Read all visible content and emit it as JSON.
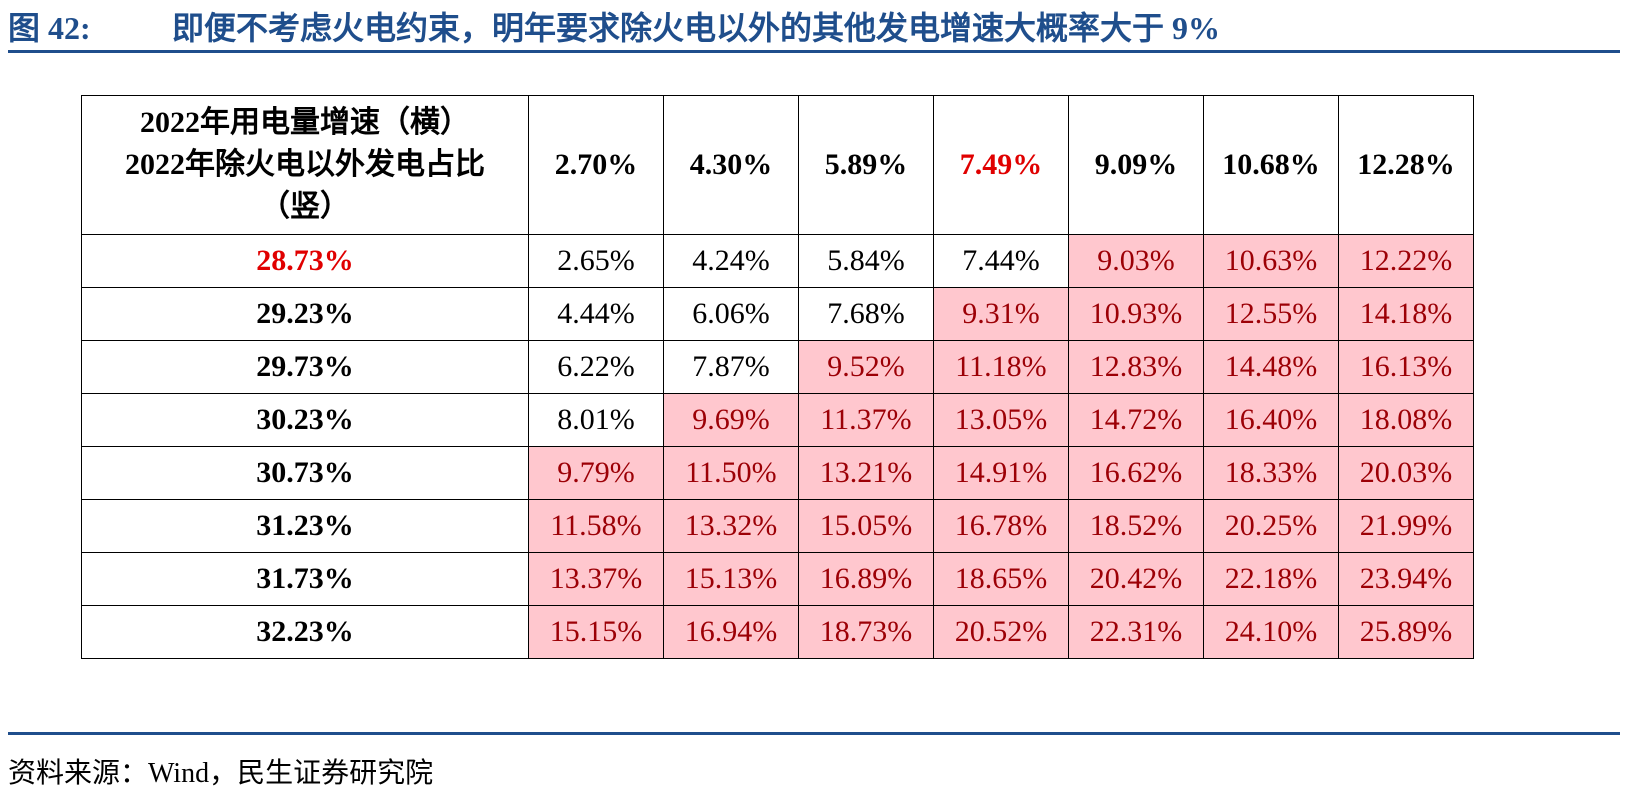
{
  "header": {
    "label": "图 42:",
    "title": "即便不考虑火电约束，明年要求除火电以外的其他发电增速大概率大于 9%"
  },
  "colors": {
    "title_blue": "#1f4e8c",
    "highlight_fill": "#ffc7ce",
    "highlight_text": "#9c0006",
    "emphasis_red": "#e00000"
  },
  "chart_data": {
    "type": "table",
    "corner_label": {
      "line1": "2022年用电量增速（横）",
      "line2": "2022年除火电以外发电占比",
      "line3": "（竖）"
    },
    "columns": [
      "2.70%",
      "4.30%",
      "5.89%",
      "7.49%",
      "9.09%",
      "10.68%",
      "12.28%"
    ],
    "emphasized_column": "7.49%",
    "emphasized_row": "28.73%",
    "highlight_rule": "value > 9%",
    "rows": [
      {
        "label": "28.73%",
        "values": [
          "2.65%",
          "4.24%",
          "5.84%",
          "7.44%",
          "9.03%",
          "10.63%",
          "12.22%"
        ],
        "highlighted": [
          false,
          false,
          false,
          false,
          true,
          true,
          true
        ]
      },
      {
        "label": "29.23%",
        "values": [
          "4.44%",
          "6.06%",
          "7.68%",
          "9.31%",
          "10.93%",
          "12.55%",
          "14.18%"
        ],
        "highlighted": [
          false,
          false,
          false,
          true,
          true,
          true,
          true
        ]
      },
      {
        "label": "29.73%",
        "values": [
          "6.22%",
          "7.87%",
          "9.52%",
          "11.18%",
          "12.83%",
          "14.48%",
          "16.13%"
        ],
        "highlighted": [
          false,
          false,
          true,
          true,
          true,
          true,
          true
        ]
      },
      {
        "label": "30.23%",
        "values": [
          "8.01%",
          "9.69%",
          "11.37%",
          "13.05%",
          "14.72%",
          "16.40%",
          "18.08%"
        ],
        "highlighted": [
          false,
          true,
          true,
          true,
          true,
          true,
          true
        ]
      },
      {
        "label": "30.73%",
        "values": [
          "9.79%",
          "11.50%",
          "13.21%",
          "14.91%",
          "16.62%",
          "18.33%",
          "20.03%"
        ],
        "highlighted": [
          true,
          true,
          true,
          true,
          true,
          true,
          true
        ]
      },
      {
        "label": "31.23%",
        "values": [
          "11.58%",
          "13.32%",
          "15.05%",
          "16.78%",
          "18.52%",
          "20.25%",
          "21.99%"
        ],
        "highlighted": [
          true,
          true,
          true,
          true,
          true,
          true,
          true
        ]
      },
      {
        "label": "31.73%",
        "values": [
          "13.37%",
          "15.13%",
          "16.89%",
          "18.65%",
          "20.42%",
          "22.18%",
          "23.94%"
        ],
        "highlighted": [
          true,
          true,
          true,
          true,
          true,
          true,
          true
        ]
      },
      {
        "label": "32.23%",
        "values": [
          "15.15%",
          "16.94%",
          "18.73%",
          "20.52%",
          "22.31%",
          "24.10%",
          "25.89%"
        ],
        "highlighted": [
          true,
          true,
          true,
          true,
          true,
          true,
          true
        ]
      }
    ]
  },
  "footer": {
    "source": "资料来源：Wind，民生证券研究院"
  }
}
